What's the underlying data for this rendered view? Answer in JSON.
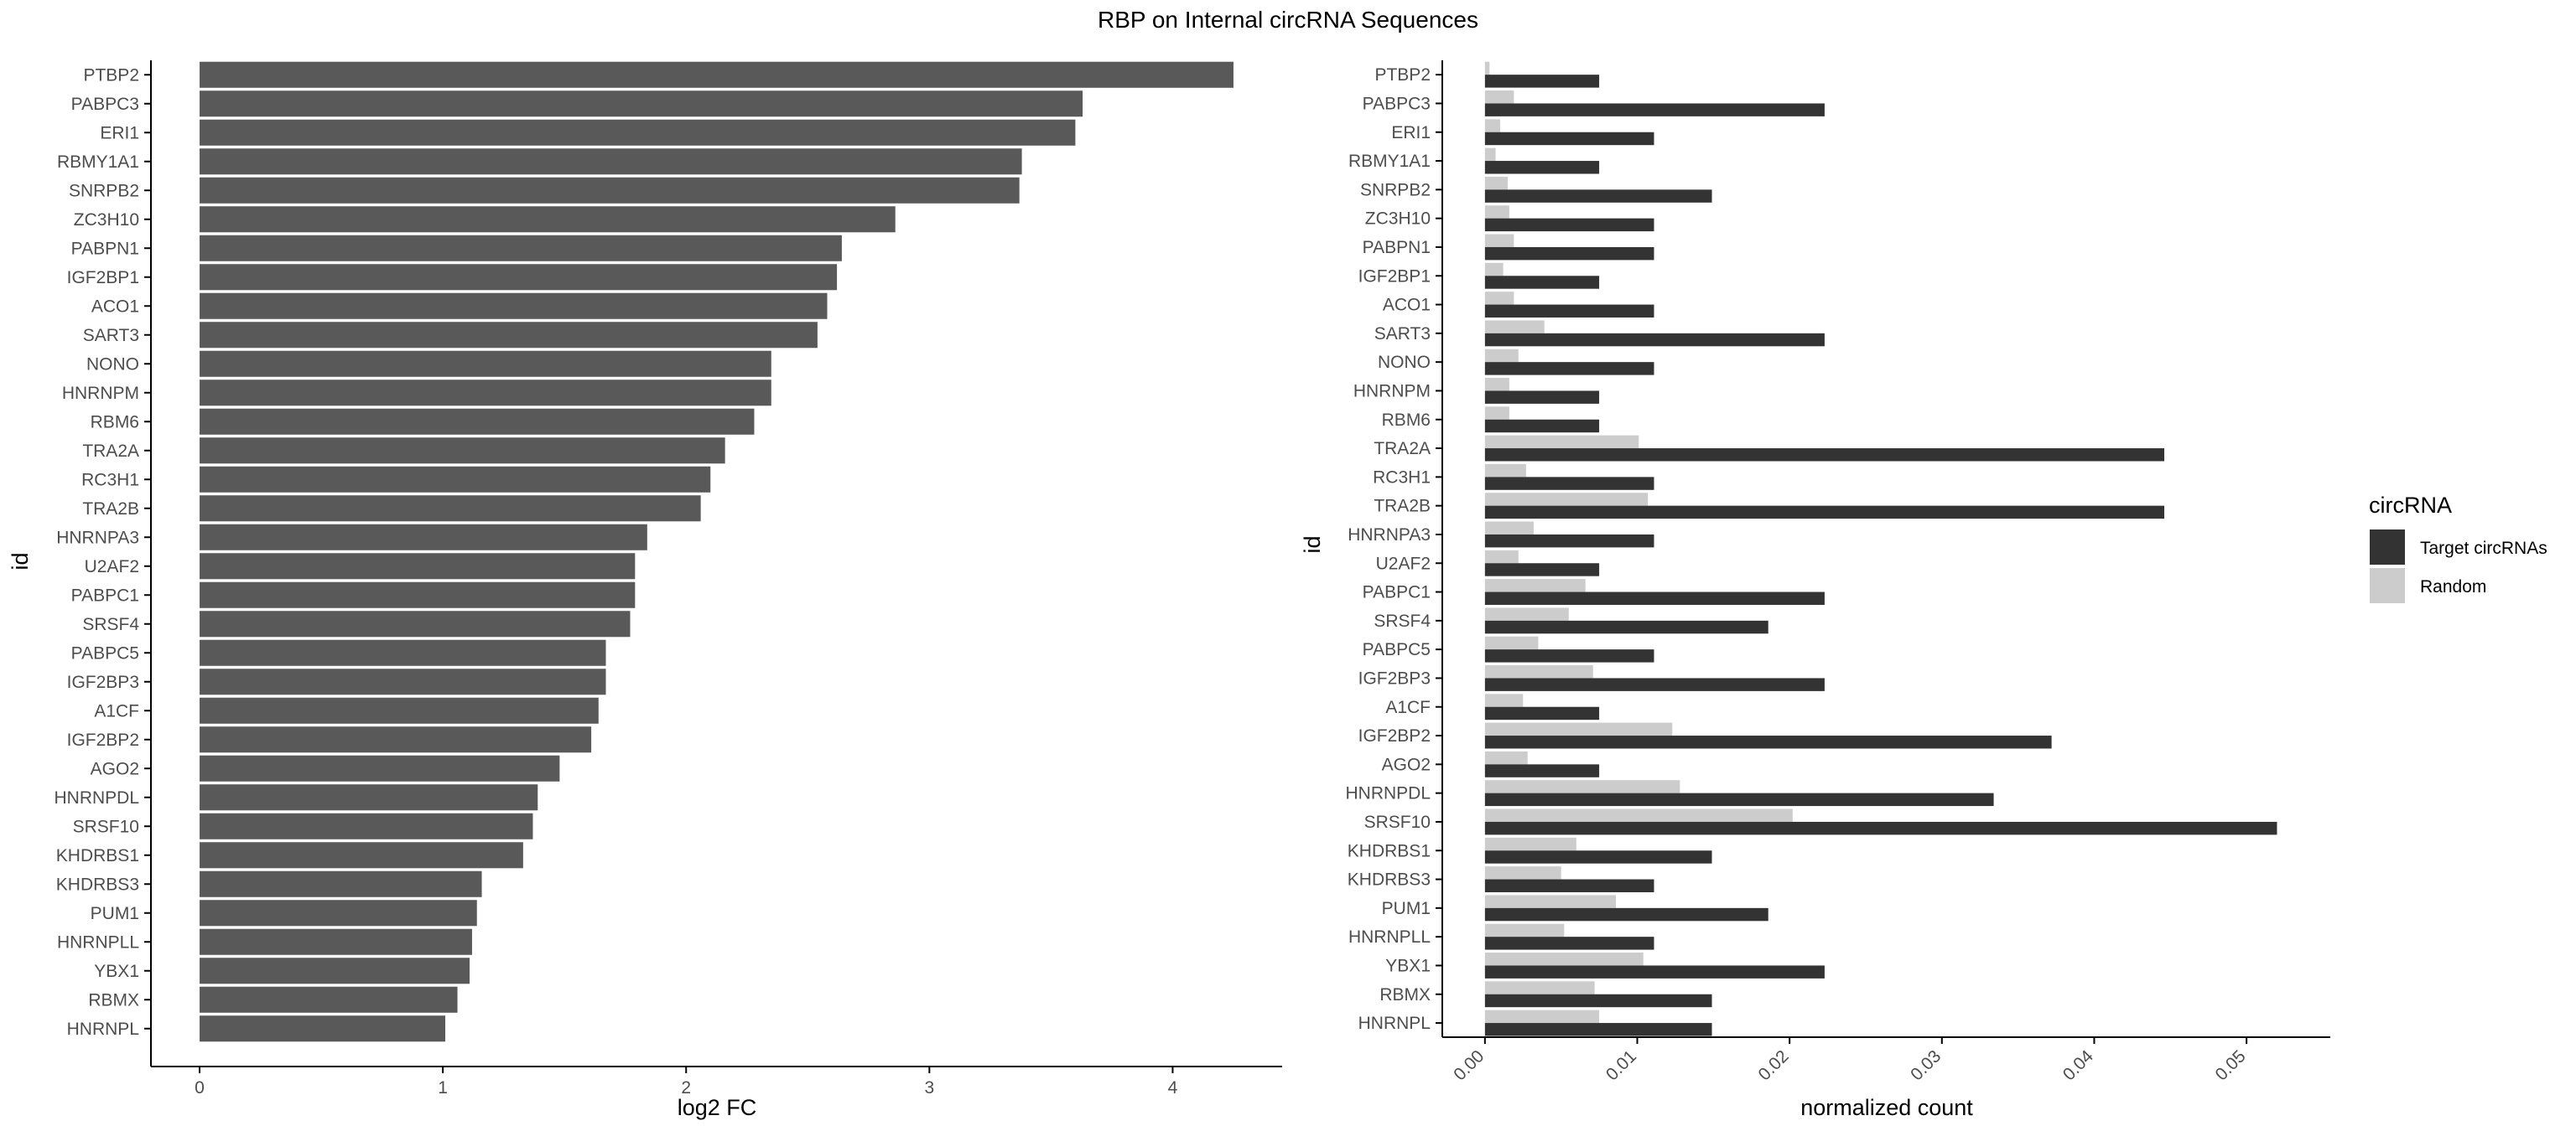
{
  "title": "RBP on Internal circRNA Sequences",
  "colors": {
    "left_bar": "#595959",
    "target": "#333333",
    "random": "#cccccc",
    "axis": "#000000",
    "tick_text": "#4d4d4d"
  },
  "chart_data": [
    {
      "type": "bar",
      "orientation": "horizontal",
      "xlabel": "log2 FC",
      "ylabel": "id",
      "xlim": [
        -0.2,
        4.45
      ],
      "xticks": [
        0,
        1,
        2,
        3,
        4
      ],
      "categories": [
        "PTBP2",
        "PABPC3",
        "ERI1",
        "RBMY1A1",
        "SNRPB2",
        "ZC3H10",
        "PABPN1",
        "IGF2BP1",
        "ACO1",
        "SART3",
        "NONO",
        "HNRNPM",
        "RBM6",
        "TRA2A",
        "RC3H1",
        "TRA2B",
        "HNRNPA3",
        "U2AF2",
        "PABPC1",
        "SRSF4",
        "PABPC5",
        "IGF2BP3",
        "A1CF",
        "IGF2BP2",
        "AGO2",
        "HNRNPDL",
        "SRSF10",
        "KHDRBS1",
        "KHDRBS3",
        "PUM1",
        "HNRNPLL",
        "YBX1",
        "RBMX",
        "HNRNPL"
      ],
      "values": [
        4.25,
        3.63,
        3.6,
        3.38,
        3.37,
        2.86,
        2.64,
        2.62,
        2.58,
        2.54,
        2.35,
        2.35,
        2.28,
        2.16,
        2.1,
        2.06,
        1.84,
        1.79,
        1.79,
        1.77,
        1.67,
        1.67,
        1.64,
        1.61,
        1.48,
        1.39,
        1.37,
        1.33,
        1.16,
        1.14,
        1.12,
        1.11,
        1.06,
        1.01
      ],
      "grid": false
    },
    {
      "type": "bar",
      "orientation": "horizontal",
      "grouped": true,
      "xlabel": "normalized count",
      "ylabel": "id",
      "xlim": [
        -0.0028,
        0.0555
      ],
      "xticks": [
        0.0,
        0.01,
        0.02,
        0.03,
        0.04,
        0.05
      ],
      "xtick_labels": [
        "0.00",
        "0.01",
        "0.02",
        "0.03",
        "0.04",
        "0.05"
      ],
      "categories": [
        "PTBP2",
        "PABPC3",
        "ERI1",
        "RBMY1A1",
        "SNRPB2",
        "ZC3H10",
        "PABPN1",
        "IGF2BP1",
        "ACO1",
        "SART3",
        "NONO",
        "HNRNPM",
        "RBM6",
        "TRA2A",
        "RC3H1",
        "TRA2B",
        "HNRNPA3",
        "U2AF2",
        "PABPC1",
        "SRSF4",
        "PABPC5",
        "IGF2BP3",
        "A1CF",
        "IGF2BP2",
        "AGO2",
        "HNRNPDL",
        "SRSF10",
        "KHDRBS1",
        "KHDRBS3",
        "PUM1",
        "HNRNPLL",
        "YBX1",
        "RBMX",
        "HNRNPL"
      ],
      "legend_title": "circRNA",
      "legend_position": "right",
      "grid": false,
      "series": [
        {
          "name": "Target circRNAs",
          "values": [
            0.0075,
            0.0223,
            0.0111,
            0.0075,
            0.0149,
            0.0111,
            0.0111,
            0.0075,
            0.0111,
            0.0223,
            0.0111,
            0.0075,
            0.0075,
            0.0446,
            0.0111,
            0.0446,
            0.0111,
            0.0075,
            0.0223,
            0.0186,
            0.0111,
            0.0223,
            0.0075,
            0.0372,
            0.0075,
            0.0334,
            0.052,
            0.0149,
            0.0111,
            0.0186,
            0.0111,
            0.0223,
            0.0149,
            0.0149
          ]
        },
        {
          "name": "Random",
          "values": [
            0.0003,
            0.0019,
            0.001,
            0.0007,
            0.0015,
            0.0016,
            0.0019,
            0.0012,
            0.0019,
            0.0039,
            0.0022,
            0.0016,
            0.0016,
            0.0101,
            0.0027,
            0.0107,
            0.0032,
            0.0022,
            0.0066,
            0.0055,
            0.0035,
            0.0071,
            0.0025,
            0.0123,
            0.0028,
            0.0128,
            0.0202,
            0.006,
            0.005,
            0.0086,
            0.0052,
            0.0104,
            0.0072,
            0.0075
          ]
        }
      ]
    }
  ]
}
